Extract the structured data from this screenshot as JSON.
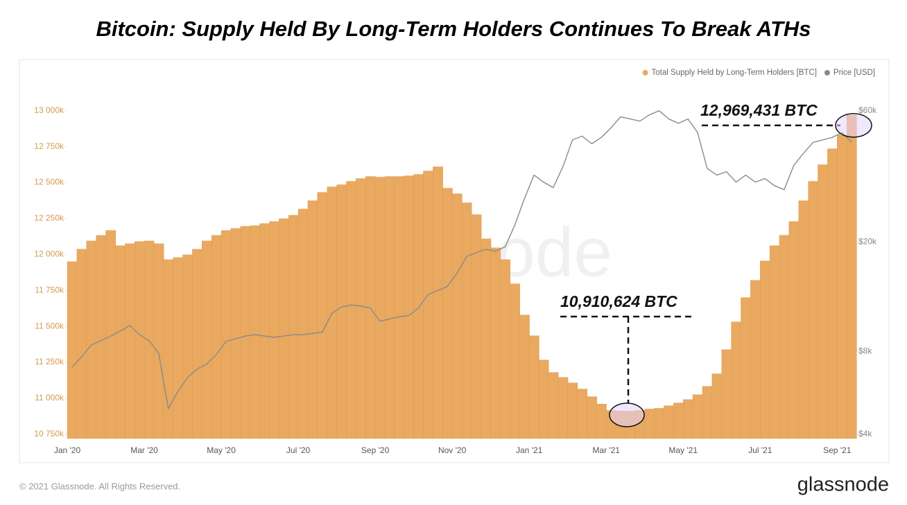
{
  "chart_data": {
    "type": "bar",
    "title": "Bitcoin: Supply Held By Long-Term Holders Continues To Break ATHs",
    "watermark": "glassnode",
    "footer": "© 2021 Glassnode. All Rights Reserved.",
    "brand": "glassnode",
    "annotations": [
      "12,969,431 BTC",
      "10,910,624 BTC"
    ],
    "categories": [
      "Jan '20",
      null,
      null,
      null,
      null,
      null,
      null,
      null,
      "Mar '20",
      null,
      null,
      null,
      null,
      null,
      null,
      null,
      "May '20",
      null,
      null,
      null,
      null,
      null,
      null,
      null,
      "Jul '20",
      null,
      null,
      null,
      null,
      null,
      null,
      null,
      "Sep '20",
      null,
      null,
      null,
      null,
      null,
      null,
      null,
      "Nov '20",
      null,
      null,
      null,
      null,
      null,
      null,
      null,
      "Jan '21",
      null,
      null,
      null,
      null,
      null,
      null,
      null,
      "Mar '21",
      null,
      null,
      null,
      null,
      null,
      null,
      null,
      "May '21",
      null,
      null,
      null,
      null,
      null,
      null,
      null,
      "Jul '21",
      null,
      null,
      null,
      null,
      null,
      null,
      null,
      "Sep '21",
      null
    ],
    "series": [
      {
        "name": "Total Supply Held by Long-Term Holders [BTC]",
        "color": "#e9a960",
        "type": "bar",
        "values": [
          11950000,
          12037000,
          12094000,
          12133000,
          12167000,
          12061000,
          12075000,
          12090000,
          12094000,
          12075000,
          11964000,
          11979000,
          11998000,
          12037000,
          12094000,
          12133000,
          12167000,
          12181000,
          12196000,
          12200000,
          12215000,
          12229000,
          12249000,
          12273000,
          12316000,
          12374000,
          12432000,
          12470000,
          12485000,
          12509000,
          12528000,
          12542000,
          12538000,
          12542000,
          12542000,
          12547000,
          12557000,
          12581000,
          12610000,
          12461000,
          12422000,
          12359000,
          12277000,
          12109000,
          12046000,
          11964000,
          11796000,
          11579000,
          11434000,
          11266000,
          11179000,
          11145000,
          11107000,
          11064000,
          11011000,
          10960000,
          10915000,
          10912000,
          10910624,
          10915000,
          10925000,
          10930000,
          10948000,
          10967000,
          10991000,
          11025000,
          11083000,
          11170000,
          11338000,
          11531000,
          11700000,
          11820000,
          11955000,
          12061000,
          12133000,
          12229000,
          12374000,
          12509000,
          12624000,
          12735000,
          12831000,
          12969431
        ]
      },
      {
        "name": "Price [USD]",
        "color": "#8a8a8a",
        "type": "line",
        "axis": "y2",
        "values": [
          7000,
          7660,
          8450,
          8750,
          9100,
          9490,
          9930,
          9200,
          8750,
          7890,
          4960,
          5720,
          6440,
          6900,
          7200,
          7800,
          8700,
          8900,
          9100,
          9200,
          9100,
          9000,
          9100,
          9200,
          9200,
          9300,
          9400,
          11000,
          11600,
          11800,
          11700,
          11500,
          10300,
          10500,
          10700,
          10800,
          11500,
          12900,
          13300,
          13800,
          15400,
          17700,
          18300,
          18800,
          18500,
          19200,
          23000,
          28700,
          35000,
          33000,
          31500,
          37500,
          47000,
          48500,
          45500,
          48000,
          52000,
          57000,
          56000,
          55000,
          58000,
          60000,
          56000,
          54000,
          56000,
          50000,
          37000,
          35000,
          36000,
          33000,
          35000,
          33000,
          34000,
          32000,
          31000,
          38000,
          42000,
          46000,
          47000,
          48000,
          50000,
          46000
        ]
      }
    ],
    "ylim": [
      10720000,
      13100000
    ],
    "yticks": [
      {
        "value": 10750000,
        "label": "10 750k"
      },
      {
        "value": 11000000,
        "label": "11 000k"
      },
      {
        "value": 11250000,
        "label": "11 250k"
      },
      {
        "value": 11500000,
        "label": "11 500k"
      },
      {
        "value": 11750000,
        "label": "11 750k"
      },
      {
        "value": 12000000,
        "label": "12 000k"
      },
      {
        "value": 12250000,
        "label": "12 250k"
      },
      {
        "value": 12500000,
        "label": "12 500k"
      },
      {
        "value": 12750000,
        "label": "12 750k"
      },
      {
        "value": 13000000,
        "label": "13 000k"
      }
    ],
    "y2lim": [
      3860,
      67700
    ],
    "y2scale": "log",
    "y2ticks": [
      {
        "value": 4000,
        "label": "$4k"
      },
      {
        "value": 8000,
        "label": "$8k"
      },
      {
        "value": 20000,
        "label": "$20k"
      },
      {
        "value": 60000,
        "label": "$60k"
      }
    ],
    "legend": "top-right"
  }
}
